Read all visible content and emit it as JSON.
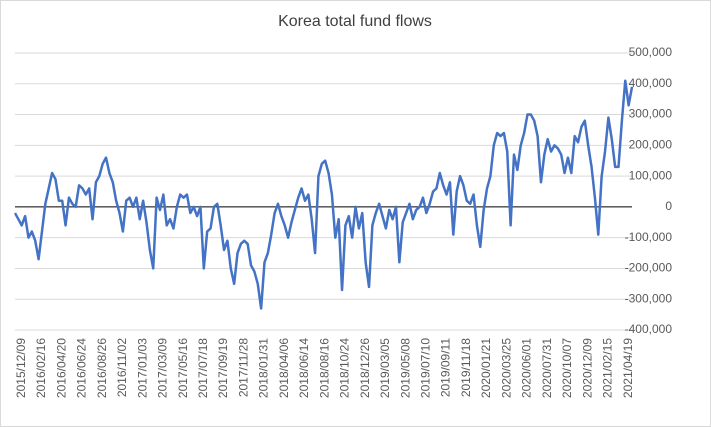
{
  "chart_data": {
    "type": "line",
    "title": "Korea total fund flows",
    "categories": [
      null,
      null,
      "2015/12/09",
      null,
      null,
      null,
      null,
      null,
      "2016/02/16",
      null,
      null,
      null,
      null,
      null,
      "2016/04/20",
      null,
      null,
      null,
      null,
      null,
      "2016/06/24",
      null,
      null,
      null,
      null,
      null,
      "2016/08/26",
      null,
      null,
      null,
      null,
      null,
      "2016/11/02",
      null,
      null,
      null,
      null,
      null,
      "2017/01/03",
      null,
      null,
      null,
      null,
      null,
      "2017/03/09",
      null,
      null,
      null,
      null,
      null,
      "2017/05/16",
      null,
      null,
      null,
      null,
      null,
      "2017/07/18",
      null,
      null,
      null,
      null,
      null,
      "2017/09/19",
      null,
      null,
      null,
      null,
      null,
      "2017/11/28",
      null,
      null,
      null,
      null,
      null,
      "2018/01/31",
      null,
      null,
      null,
      null,
      null,
      "2018/04/06",
      null,
      null,
      null,
      null,
      null,
      "2018/06/14",
      null,
      null,
      null,
      null,
      null,
      "2018/08/16",
      null,
      null,
      null,
      null,
      null,
      "2018/10/24",
      null,
      null,
      null,
      null,
      null,
      "2018/12/26",
      null,
      null,
      null,
      null,
      null,
      "2019/03/05",
      null,
      null,
      null,
      null,
      null,
      "2019/05/08",
      null,
      null,
      null,
      null,
      null,
      "2019/07/10",
      null,
      null,
      null,
      null,
      null,
      "2019/09/11",
      null,
      null,
      null,
      null,
      null,
      "2019/11/18",
      null,
      null,
      null,
      null,
      null,
      "2020/01/21",
      null,
      null,
      null,
      null,
      null,
      "2020/03/25",
      null,
      null,
      null,
      null,
      null,
      "2020/06/01",
      null,
      null,
      null,
      null,
      null,
      "2020/07/31",
      null,
      null,
      null,
      null,
      null,
      "2020/10/07",
      null,
      null,
      null,
      null,
      null,
      "2020/12/09",
      null,
      null,
      null,
      null,
      null,
      "2021/02/15",
      null,
      null,
      null,
      null,
      null,
      "2021/04/19",
      null
    ],
    "series": [
      {
        "name": "Korea total fund flows",
        "color": "#4472c4",
        "values": [
          -20000,
          -40000,
          -60000,
          -30000,
          -100000,
          -80000,
          -110000,
          -170000,
          -80000,
          10000,
          60000,
          110000,
          90000,
          20000,
          20000,
          -60000,
          30000,
          10000,
          0,
          70000,
          60000,
          40000,
          60000,
          -40000,
          80000,
          100000,
          140000,
          160000,
          110000,
          80000,
          20000,
          -20000,
          -80000,
          20000,
          30000,
          0,
          30000,
          -40000,
          20000,
          -50000,
          -140000,
          -200000,
          30000,
          -10000,
          40000,
          -60000,
          -40000,
          -70000,
          0,
          40000,
          30000,
          40000,
          -20000,
          0,
          -30000,
          0,
          -200000,
          -80000,
          -70000,
          0,
          10000,
          -60000,
          -140000,
          -110000,
          -200000,
          -250000,
          -150000,
          -120000,
          -110000,
          -120000,
          -190000,
          -210000,
          -250000,
          -330000,
          -180000,
          -150000,
          -90000,
          -20000,
          10000,
          -30000,
          -60000,
          -100000,
          -50000,
          -10000,
          30000,
          60000,
          20000,
          40000,
          -40000,
          -150000,
          100000,
          140000,
          150000,
          110000,
          40000,
          -100000,
          -40000,
          -270000,
          -60000,
          -30000,
          -100000,
          0,
          -70000,
          -20000,
          -180000,
          -260000,
          -60000,
          -20000,
          10000,
          -30000,
          -70000,
          -10000,
          -40000,
          0,
          -180000,
          -50000,
          -20000,
          10000,
          -40000,
          -10000,
          0,
          30000,
          -20000,
          10000,
          50000,
          60000,
          110000,
          70000,
          40000,
          80000,
          -90000,
          50000,
          100000,
          70000,
          20000,
          10000,
          40000,
          -60000,
          -130000,
          -10000,
          60000,
          100000,
          200000,
          240000,
          230000,
          240000,
          180000,
          -60000,
          170000,
          120000,
          200000,
          240000,
          300000,
          300000,
          280000,
          230000,
          80000,
          170000,
          220000,
          180000,
          200000,
          190000,
          170000,
          110000,
          160000,
          110000,
          230000,
          210000,
          260000,
          280000,
          200000,
          130000,
          30000,
          -90000,
          100000,
          180000,
          290000,
          220000,
          130000,
          130000,
          280000,
          410000,
          330000,
          390000
        ]
      }
    ],
    "ylim": [
      -400000,
      500000
    ],
    "yticks": [
      {
        "value": -400000,
        "label": "-400,000"
      },
      {
        "value": -300000,
        "label": "-300,000"
      },
      {
        "value": -200000,
        "label": "-200,000"
      },
      {
        "value": -100000,
        "label": "-100,000"
      },
      0,
      {
        "value": 100000,
        "label": "100,000"
      },
      {
        "value": 200000,
        "label": "200,000"
      },
      {
        "value": 300000,
        "label": "300,000"
      },
      {
        "value": 400000,
        "label": "400,000"
      },
      {
        "value": 500000,
        "label": "500,000"
      }
    ],
    "grid": true
  }
}
